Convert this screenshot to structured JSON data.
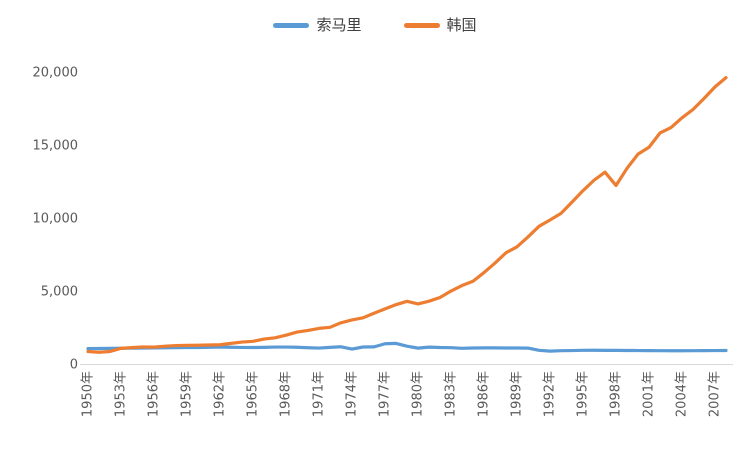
{
  "page": {
    "background": "#ffffff"
  },
  "legend": {
    "items": [
      {
        "label": "索马里",
        "color": "#5B9BD5"
      },
      {
        "label": "韩国",
        "color": "#ED7D31"
      }
    ]
  },
  "chart_data": {
    "type": "line",
    "title": "",
    "xlabel": "",
    "ylabel": "",
    "grid": false,
    "legend_position": "top",
    "axis_color": "#D9D9D9",
    "label_color": "#595959",
    "ylim": [
      0,
      20000
    ],
    "y_ticks": [
      0,
      5000,
      10000,
      15000,
      20000
    ],
    "y_tick_labels": [
      "0",
      "5,000",
      "10,000",
      "15,000",
      "20,000"
    ],
    "x_tick_interval": 3,
    "x_tick_labels": [
      "1950年",
      "1953年",
      "1956年",
      "1959年",
      "1962年",
      "1965年",
      "1968年",
      "1971年",
      "1974年",
      "1977年",
      "1980年",
      "1983年",
      "1986年",
      "1989年",
      "1992年",
      "1995年",
      "1998年",
      "2001年",
      "2004年",
      "2007年"
    ],
    "x": [
      1950,
      1951,
      1952,
      1953,
      1954,
      1955,
      1956,
      1957,
      1958,
      1959,
      1960,
      1961,
      1962,
      1963,
      1964,
      1965,
      1966,
      1967,
      1968,
      1969,
      1970,
      1971,
      1972,
      1973,
      1974,
      1975,
      1976,
      1977,
      1978,
      1979,
      1980,
      1981,
      1982,
      1983,
      1984,
      1985,
      1986,
      1987,
      1988,
      1989,
      1990,
      1991,
      1992,
      1993,
      1994,
      1995,
      1996,
      1997,
      1998,
      1999,
      2000,
      2001,
      2002,
      2003,
      2004,
      2005,
      2006,
      2007,
      2008
    ],
    "series": [
      {
        "name": "索马里",
        "color": "#5B9BD5",
        "values": [
          1057,
          1062,
          1069,
          1078,
          1086,
          1094,
          1102,
          1110,
          1118,
          1126,
          1126,
          1143,
          1160,
          1147,
          1133,
          1128,
          1139,
          1159,
          1161,
          1146,
          1111,
          1092,
          1138,
          1180,
          1021,
          1165,
          1173,
          1386,
          1411,
          1222,
          1087,
          1157,
          1128,
          1118,
          1076,
          1096,
          1102,
          1107,
          1098,
          1095,
          1088,
          937,
          882,
          912,
          922,
          937,
          943,
          931,
          935,
          925,
          922,
          917,
          911,
          906,
          907,
          911,
          917,
          922,
          926
        ]
      },
      {
        "name": "韩国",
        "color": "#ED7D31",
        "values": [
          854,
          807,
          857,
          1072,
          1122,
          1169,
          1157,
          1219,
          1263,
          1278,
          1286,
          1302,
          1319,
          1414,
          1504,
          1555,
          1708,
          1792,
          1975,
          2186,
          2299,
          2439,
          2512,
          2824,
          3015,
          3162,
          3476,
          3775,
          4064,
          4294,
          4114,
          4302,
          4557,
          4997,
          5375,
          5670,
          6263,
          6916,
          7621,
          8027,
          8704,
          9430,
          9862,
          10316,
          11090,
          11873,
          12587,
          13137,
          12229,
          13403,
          14375,
          14845,
          15823,
          16194,
          16862,
          17434,
          18185,
          18982,
          19614
        ]
      }
    ]
  }
}
